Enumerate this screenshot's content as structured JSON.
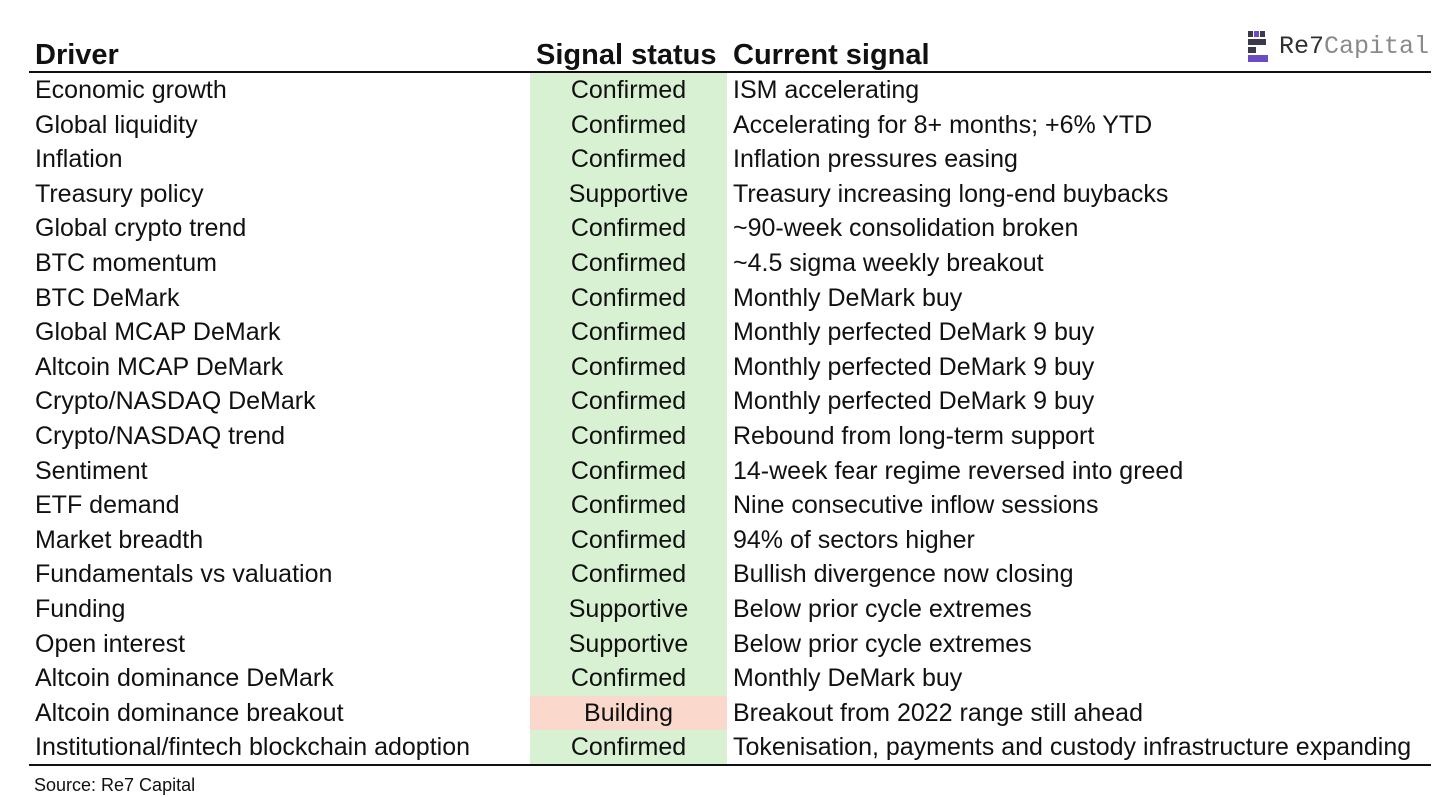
{
  "logo": {
    "name_primary": "Re7",
    "name_secondary": "Capital",
    "mark_colors": {
      "dark": "#3a3a4a",
      "purple": "#6b4bc6"
    }
  },
  "table": {
    "headers": {
      "driver": "Driver",
      "status": "Signal status",
      "signal": "Current signal"
    },
    "status_colors": {
      "Confirmed": "#d9f1d3",
      "Supportive": "#d9f1d3",
      "Building": "#fad9cc"
    },
    "rows": [
      {
        "driver": "Economic growth",
        "status": "Confirmed",
        "signal": "ISM accelerating"
      },
      {
        "driver": "Global liquidity",
        "status": "Confirmed",
        "signal": "Accelerating for 8+ months; +6% YTD"
      },
      {
        "driver": "Inflation",
        "status": "Confirmed",
        "signal": "Inflation pressures easing"
      },
      {
        "driver": "Treasury policy",
        "status": "Supportive",
        "signal": "Treasury increasing long-end buybacks"
      },
      {
        "driver": "Global crypto trend",
        "status": "Confirmed",
        "signal": "~90-week consolidation broken"
      },
      {
        "driver": "BTC momentum",
        "status": "Confirmed",
        "signal": "~4.5 sigma weekly breakout"
      },
      {
        "driver": "BTC DeMark",
        "status": "Confirmed",
        "signal": "Monthly DeMark buy"
      },
      {
        "driver": "Global MCAP DeMark",
        "status": "Confirmed",
        "signal": "Monthly perfected DeMark 9 buy"
      },
      {
        "driver": "Altcoin MCAP DeMark",
        "status": "Confirmed",
        "signal": "Monthly perfected DeMark 9 buy"
      },
      {
        "driver": "Crypto/NASDAQ DeMark",
        "status": "Confirmed",
        "signal": "Monthly perfected DeMark 9 buy"
      },
      {
        "driver": "Crypto/NASDAQ trend",
        "status": "Confirmed",
        "signal": "Rebound from long-term support"
      },
      {
        "driver": "Sentiment",
        "status": "Confirmed",
        "signal": "14-week fear regime reversed into greed"
      },
      {
        "driver": "ETF demand",
        "status": "Confirmed",
        "signal": "Nine consecutive inflow sessions"
      },
      {
        "driver": "Market breadth",
        "status": "Confirmed",
        "signal": "94% of sectors higher"
      },
      {
        "driver": "Fundamentals vs valuation",
        "status": "Confirmed",
        "signal": "Bullish divergence now closing"
      },
      {
        "driver": "Funding",
        "status": "Supportive",
        "signal": "Below prior cycle extremes"
      },
      {
        "driver": "Open interest",
        "status": "Supportive",
        "signal": "Below prior cycle extremes"
      },
      {
        "driver": "Altcoin dominance DeMark",
        "status": "Confirmed",
        "signal": "Monthly DeMark buy"
      },
      {
        "driver": "Altcoin dominance breakout",
        "status": "Building",
        "signal": "Breakout from 2022 range still ahead"
      },
      {
        "driver": "Institutional/fintech blockchain adoption",
        "status": "Confirmed",
        "signal": "Tokenisation, payments and custody infrastructure expanding"
      }
    ]
  },
  "source": "Source: Re7 Capital"
}
